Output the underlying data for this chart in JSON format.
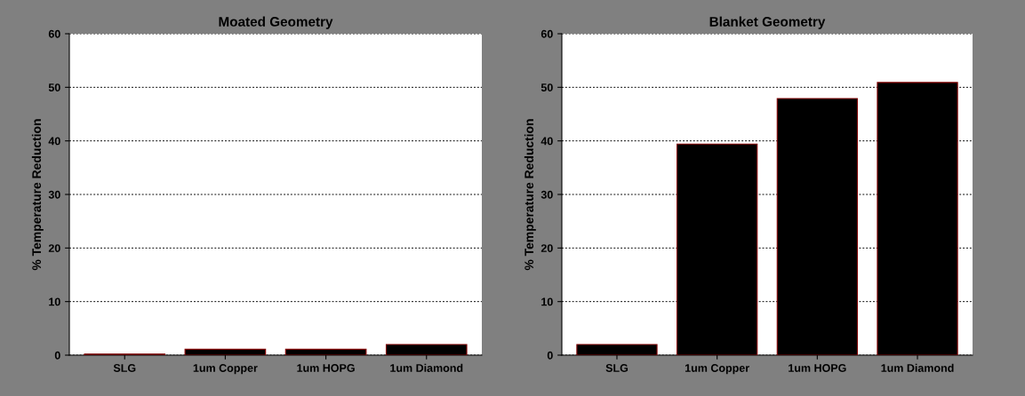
{
  "chart_data": [
    {
      "type": "bar",
      "title": "Moated Geometry",
      "ylabel": "% Temperature Reduction",
      "categories": [
        "SLG",
        "1um Copper",
        "1um HOPG",
        "1um Diamond"
      ],
      "values": [
        0.2,
        1.1,
        1.1,
        2.0
      ],
      "color": "#000000",
      "ylim": [
        0,
        60
      ],
      "yticks": [
        0,
        10,
        20,
        30,
        40,
        50,
        60
      ],
      "grid": "y"
    },
    {
      "type": "bar",
      "title": "Blanket Geometry",
      "ylabel": "% Temperature Reduction",
      "categories": [
        "SLG",
        "1um Copper",
        "1um HOPG",
        "1um Diamond"
      ],
      "values": [
        2.0,
        39.4,
        47.9,
        50.9
      ],
      "color": "#000000",
      "ylim": [
        0,
        60
      ],
      "yticks": [
        0,
        10,
        20,
        30,
        40,
        50,
        60
      ],
      "grid": "y"
    }
  ]
}
